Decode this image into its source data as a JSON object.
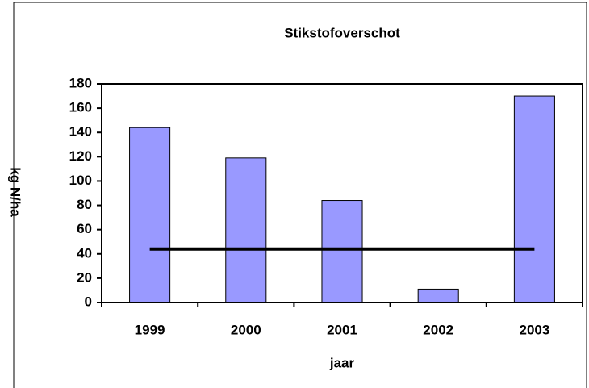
{
  "chart_data": {
    "type": "bar",
    "title": "Stikstofoverschot",
    "x_label": "jaar",
    "y_label": "kg N/ha",
    "categories": [
      "1999",
      "2000",
      "2001",
      "2002",
      "2003"
    ],
    "series": [
      {
        "type": "bar",
        "color": "#9999ff",
        "values": [
          144,
          119,
          84,
          11,
          170
        ]
      },
      {
        "type": "line",
        "color": "#000000",
        "values": [
          44,
          44,
          44,
          44,
          44
        ]
      }
    ],
    "ylim": [
      0,
      180
    ],
    "yticks": [
      0,
      20,
      40,
      60,
      80,
      100,
      120,
      140,
      160,
      180
    ]
  }
}
